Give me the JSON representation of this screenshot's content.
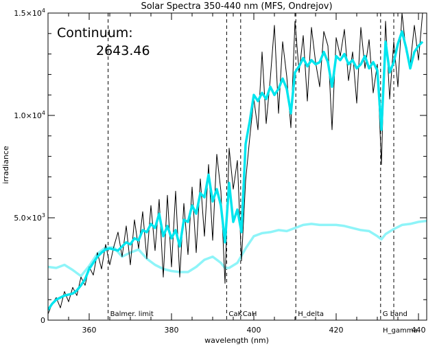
{
  "chart_data": {
    "type": "line",
    "title": "Solar Spectra 350-440 nm (MFS, Ondrejov)",
    "xlabel": "wavelength (nm)",
    "ylabel": "irradiance",
    "xlim": [
      350,
      442
    ],
    "ylim": [
      0,
      15000
    ],
    "x_ticks": [
      {
        "value": 360,
        "label": "360"
      },
      {
        "value": 380,
        "label": "380"
      },
      {
        "value": 400,
        "label": "400"
      },
      {
        "value": 420,
        "label": "420"
      },
      {
        "value": 440,
        "label": "440"
      }
    ],
    "y_ticks": [
      {
        "value": 0,
        "mantissa": "0",
        "exp": ""
      },
      {
        "value": 5000,
        "mantissa": "5.0×10",
        "exp": "3"
      },
      {
        "value": 10000,
        "mantissa": "1.0×10",
        "exp": "4"
      },
      {
        "value": 15000,
        "mantissa": "1.5×10",
        "exp": "4"
      }
    ],
    "grid": false,
    "annotation": {
      "label": "Continuum:",
      "value": "2643.46"
    },
    "reference_lines": [
      {
        "x": 364.6,
        "label": "Balmer. limit"
      },
      {
        "x": 393.4,
        "label": "CaK"
      },
      {
        "x": 396.8,
        "label": "CaH"
      },
      {
        "x": 410.2,
        "label": "H_delta"
      },
      {
        "x": 430.8,
        "label": "G band"
      },
      {
        "x": 434.0,
        "label": "H_gamma"
      }
    ],
    "colors": {
      "raw": "#000000",
      "smoothed": "#00e5ee",
      "continuum": "#8ef4f8",
      "reference": "#000000"
    },
    "series": [
      {
        "key": "raw",
        "x": [
          350,
          351,
          352,
          353,
          354,
          355,
          356,
          357,
          358,
          359,
          360,
          361,
          362,
          363,
          364,
          365,
          366,
          367,
          368,
          369,
          370,
          371,
          372,
          373,
          374,
          375,
          376,
          377,
          378,
          379,
          380,
          381,
          382,
          383,
          384,
          385,
          386,
          387,
          388,
          389,
          390,
          391,
          392,
          393,
          394,
          395,
          396,
          397,
          398,
          399,
          400,
          401,
          402,
          403,
          404,
          405,
          406,
          407,
          408,
          409,
          410,
          411,
          412,
          413,
          414,
          415,
          416,
          417,
          418,
          419,
          420,
          421,
          422,
          423,
          424,
          425,
          426,
          427,
          428,
          429,
          430,
          431,
          432,
          433,
          434,
          435,
          436,
          437,
          438,
          439,
          440,
          441
        ],
        "y": [
          300,
          800,
          1100,
          600,
          1400,
          900,
          1600,
          1200,
          2100,
          1700,
          2600,
          2200,
          3300,
          2500,
          3700,
          2700,
          3600,
          4300,
          3100,
          4600,
          2700,
          4900,
          3500,
          5300,
          3000,
          5600,
          3400,
          5900,
          2100,
          6100,
          2600,
          6300,
          2100,
          5700,
          3200,
          6500,
          3300,
          6900,
          4100,
          7600,
          3900,
          8100,
          6300,
          1800,
          8400,
          6400,
          7800,
          2900,
          6800,
          8900,
          10800,
          9300,
          13100,
          9600,
          11800,
          14400,
          10100,
          13600,
          11900,
          9400,
          14600,
          12100,
          13900,
          10700,
          14300,
          12600,
          11400,
          14100,
          13400,
          9300,
          13800,
          12900,
          14200,
          11700,
          13100,
          10600,
          14300,
          12300,
          13700,
          11100,
          12500,
          7600,
          14600,
          10800,
          13600,
          11400,
          15000,
          13100,
          12500,
          14400,
          12700,
          15000
        ]
      },
      {
        "key": "smoothed",
        "x": [
          350,
          351,
          352,
          353,
          354,
          355,
          356,
          357,
          358,
          359,
          360,
          361,
          362,
          363,
          364,
          365,
          366,
          367,
          368,
          369,
          370,
          371,
          372,
          373,
          374,
          375,
          376,
          377,
          378,
          379,
          380,
          381,
          382,
          383,
          384,
          385,
          386,
          387,
          388,
          389,
          390,
          391,
          392,
          393,
          394,
          395,
          396,
          397,
          398,
          399,
          400,
          401,
          402,
          403,
          404,
          405,
          406,
          407,
          408,
          409,
          410,
          411,
          412,
          413,
          414,
          415,
          416,
          417,
          418,
          419,
          420,
          421,
          422,
          423,
          424,
          425,
          426,
          427,
          428,
          429,
          430,
          431,
          432,
          433,
          434,
          435,
          436,
          437,
          438,
          439,
          440,
          441
        ],
        "y": [
          500,
          800,
          1000,
          1100,
          1200,
          1250,
          1300,
          1450,
          1700,
          2000,
          2500,
          2800,
          3100,
          3300,
          3450,
          3500,
          3450,
          3400,
          3600,
          3800,
          3700,
          4000,
          3900,
          4400,
          4300,
          4700,
          4500,
          5200,
          4100,
          4600,
          4000,
          4400,
          3600,
          4900,
          4800,
          5600,
          5200,
          6200,
          6000,
          7100,
          5800,
          6400,
          5600,
          3800,
          6700,
          4800,
          5400,
          4300,
          8600,
          9700,
          11000,
          10700,
          11100,
          10800,
          11400,
          11000,
          11300,
          11800,
          11300,
          10100,
          12100,
          12400,
          12800,
          12400,
          12700,
          12500,
          12600,
          13100,
          12600,
          11400,
          12900,
          12700,
          13000,
          12500,
          12700,
          12300,
          12500,
          12900,
          12300,
          12600,
          12200,
          9300,
          13600,
          12100,
          12600,
          13500,
          14100,
          13300,
          12300,
          13100,
          13400,
          13600
        ]
      },
      {
        "key": "continuum",
        "x": [
          350,
          352,
          354,
          356,
          358,
          360,
          362,
          364,
          366,
          368,
          370,
          372,
          374,
          376,
          378,
          380,
          382,
          384,
          386,
          388,
          390,
          392,
          393,
          394,
          396,
          398,
          400,
          402,
          404,
          406,
          408,
          410,
          412,
          414,
          416,
          418,
          420,
          422,
          424,
          426,
          428,
          430,
          431,
          432,
          434,
          436,
          438,
          440,
          442
        ],
        "y": [
          2600,
          2550,
          2700,
          2450,
          2150,
          2650,
          3250,
          3550,
          3550,
          3100,
          3300,
          3450,
          3000,
          2700,
          2500,
          2400,
          2350,
          2350,
          2600,
          2950,
          3100,
          2800,
          2550,
          2550,
          2800,
          3500,
          4100,
          4250,
          4300,
          4400,
          4350,
          4500,
          4650,
          4700,
          4650,
          4650,
          4650,
          4600,
          4500,
          4400,
          4350,
          4100,
          3950,
          4200,
          4450,
          4650,
          4700,
          4800,
          4850
        ]
      }
    ]
  }
}
